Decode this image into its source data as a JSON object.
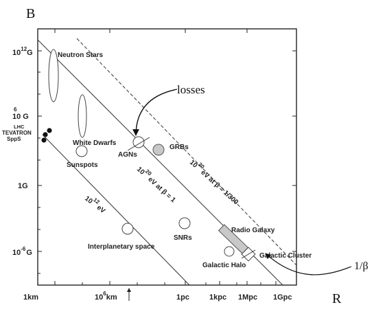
{
  "axes": {
    "y_axis_label": "B",
    "x_axis_label": "R",
    "y_ticks": [
      {
        "base": "10",
        "exp": "12",
        "unit": "G"
      },
      {
        "base": "10",
        "exp": "6",
        "unit": "G"
      },
      {
        "base": "1G",
        "exp": "",
        "unit": ""
      },
      {
        "base": "10",
        "exp": "-6",
        "unit": "G"
      }
    ],
    "x_ticks": [
      {
        "base": "1km",
        "exp": "",
        "unit": ""
      },
      {
        "base": "10",
        "exp": "6",
        "unit": "km"
      },
      {
        "base": "1pc",
        "exp": "",
        "unit": ""
      },
      {
        "base": "1kpc",
        "exp": "",
        "unit": ""
      },
      {
        "base": "1Mpc",
        "exp": "",
        "unit": ""
      },
      {
        "base": "1Gpc",
        "exp": "",
        "unit": ""
      }
    ],
    "accelerators": [
      "LHC",
      "TEVATRON",
      "SppS"
    ]
  },
  "objects": {
    "neutron_stars": "Neutron Stars",
    "white_dwarfs": "White Dwarfs",
    "sunspots": "Sunspots",
    "agns": "AGNs",
    "grbs": "GRBs",
    "interplanetary": "Interplanetary space",
    "snrs": "SNRs",
    "radio_galaxy": "Radio Galaxy",
    "galactic_halo": "Galactic Halo",
    "galactic_cluster": "Galactic Cluster"
  },
  "lines": {
    "e12": {
      "base": "10",
      "exp": "12",
      "unit": "eV"
    },
    "e20_beta1": {
      "base": "10",
      "exp": "20",
      "unit": "eV at β = 1"
    },
    "e20_beta300": {
      "base": "10",
      "exp": "20",
      "unit": "eV at β = 1/300"
    }
  },
  "annotations": {
    "losses": "losses",
    "one_over_beta": "1/β"
  }
}
